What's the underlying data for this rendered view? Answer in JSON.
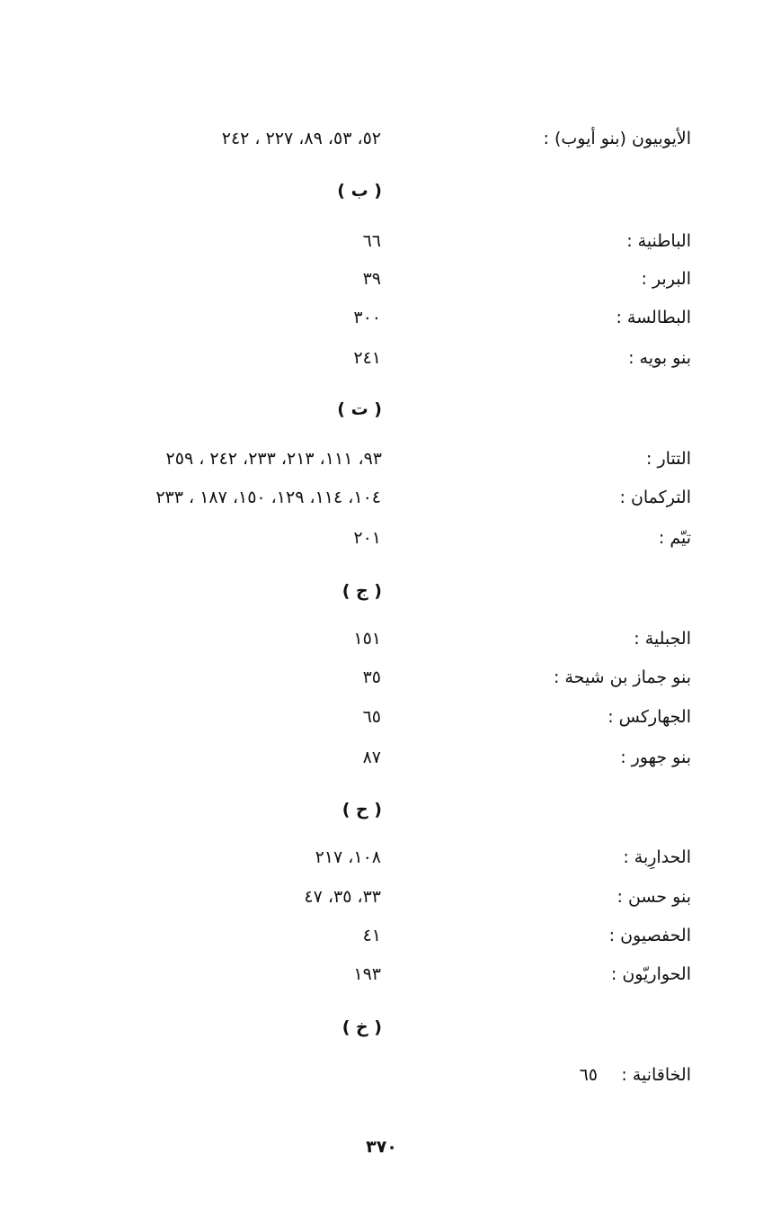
{
  "first_entries": [
    {
      "name": "الأيوبيون (بنو أيوب) :",
      "pages": "٥٢، ٥٣، ٨٩، ٢٢٧ ، ٢٤٢"
    }
  ],
  "sections": [
    {
      "heading": "( ب )",
      "entries": [
        {
          "name": "الباطنية :",
          "pages": "٦٦"
        },
        {
          "name": "البربر :",
          "pages": "٣٩"
        },
        {
          "name": "البطالسة :",
          "pages": "٣٠٠"
        },
        {
          "name": "بنو بويه :",
          "pages": "٢٤١"
        }
      ]
    },
    {
      "heading": "( ت )",
      "entries": [
        {
          "name": "التتار :",
          "pages": "٩٣، ١١١، ٢١٣، ٢٣٣، ٢٤٢ ، ٢٥٩"
        },
        {
          "name": "التركمان :",
          "pages": "١٠٤، ١١٤، ١٢٩، ١٥٠، ١٨٧ ، ٢٣٣"
        },
        {
          "name": "تيّم :",
          "pages": "٢٠١"
        }
      ]
    },
    {
      "heading": "( ج )",
      "entries": [
        {
          "name": "الجبلية :",
          "pages": "١٥١"
        },
        {
          "name": "بنو جماز بن شيحة :",
          "pages": "٣٥"
        },
        {
          "name": "الجهاركس :",
          "pages": "٦٥"
        },
        {
          "name": "بنو جهور :",
          "pages": "٨٧"
        }
      ]
    },
    {
      "heading": "( ح )",
      "entries": [
        {
          "name": "الحدارِبة :",
          "pages": "١٠٨، ٢١٧"
        },
        {
          "name": "بنو حسن :",
          "pages": "٣٣، ٣٥، ٤٧"
        },
        {
          "name": "الحفصيون :",
          "pages": "٤١"
        },
        {
          "name": "الحواريّون :",
          "pages": "١٩٣"
        }
      ]
    },
    {
      "heading": "( خ )",
      "entries": [
        {
          "name": "الخاقانية :",
          "pages": "٦٥"
        }
      ]
    }
  ],
  "page_number": "٣٧٠"
}
